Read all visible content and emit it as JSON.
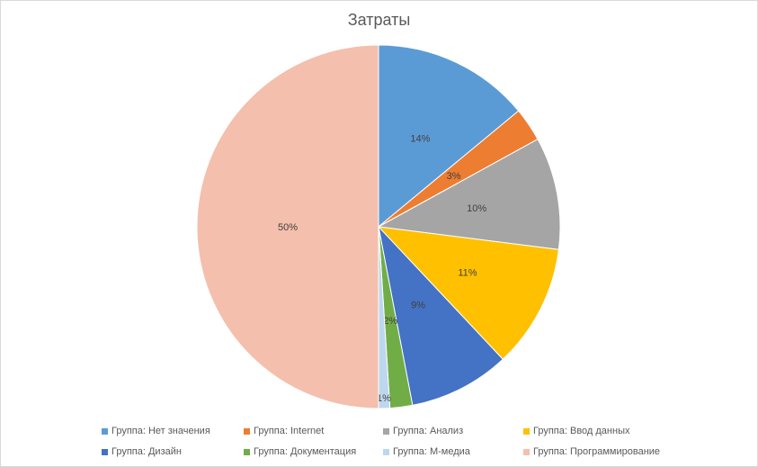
{
  "chart_data": {
    "type": "pie",
    "title": "Затраты",
    "legend_position": "bottom",
    "slices": [
      {
        "name": "Группа: Нет значения",
        "value": 14,
        "label": "14%",
        "color": "#5B9BD5"
      },
      {
        "name": "Группа: Internet",
        "value": 3,
        "label": "3%",
        "color": "#ED7D31"
      },
      {
        "name": "Группа: Анализ",
        "value": 10,
        "label": "10%",
        "color": "#A5A5A5"
      },
      {
        "name": "Группа: Ввод данных",
        "value": 11,
        "label": "11%",
        "color": "#FFC000"
      },
      {
        "name": "Группа: Дизайн",
        "value": 9,
        "label": "9%",
        "color": "#4472C4"
      },
      {
        "name": "Группа: Документация",
        "value": 2,
        "label": "2%",
        "color": "#70AD47"
      },
      {
        "name": "Группа: M-медиа",
        "value": 1,
        "label": "1%",
        "color": "#BDD7EE"
      },
      {
        "name": "Группа: Программирование",
        "value": 50,
        "label": "50%",
        "color": "#F4BFAD"
      }
    ]
  }
}
